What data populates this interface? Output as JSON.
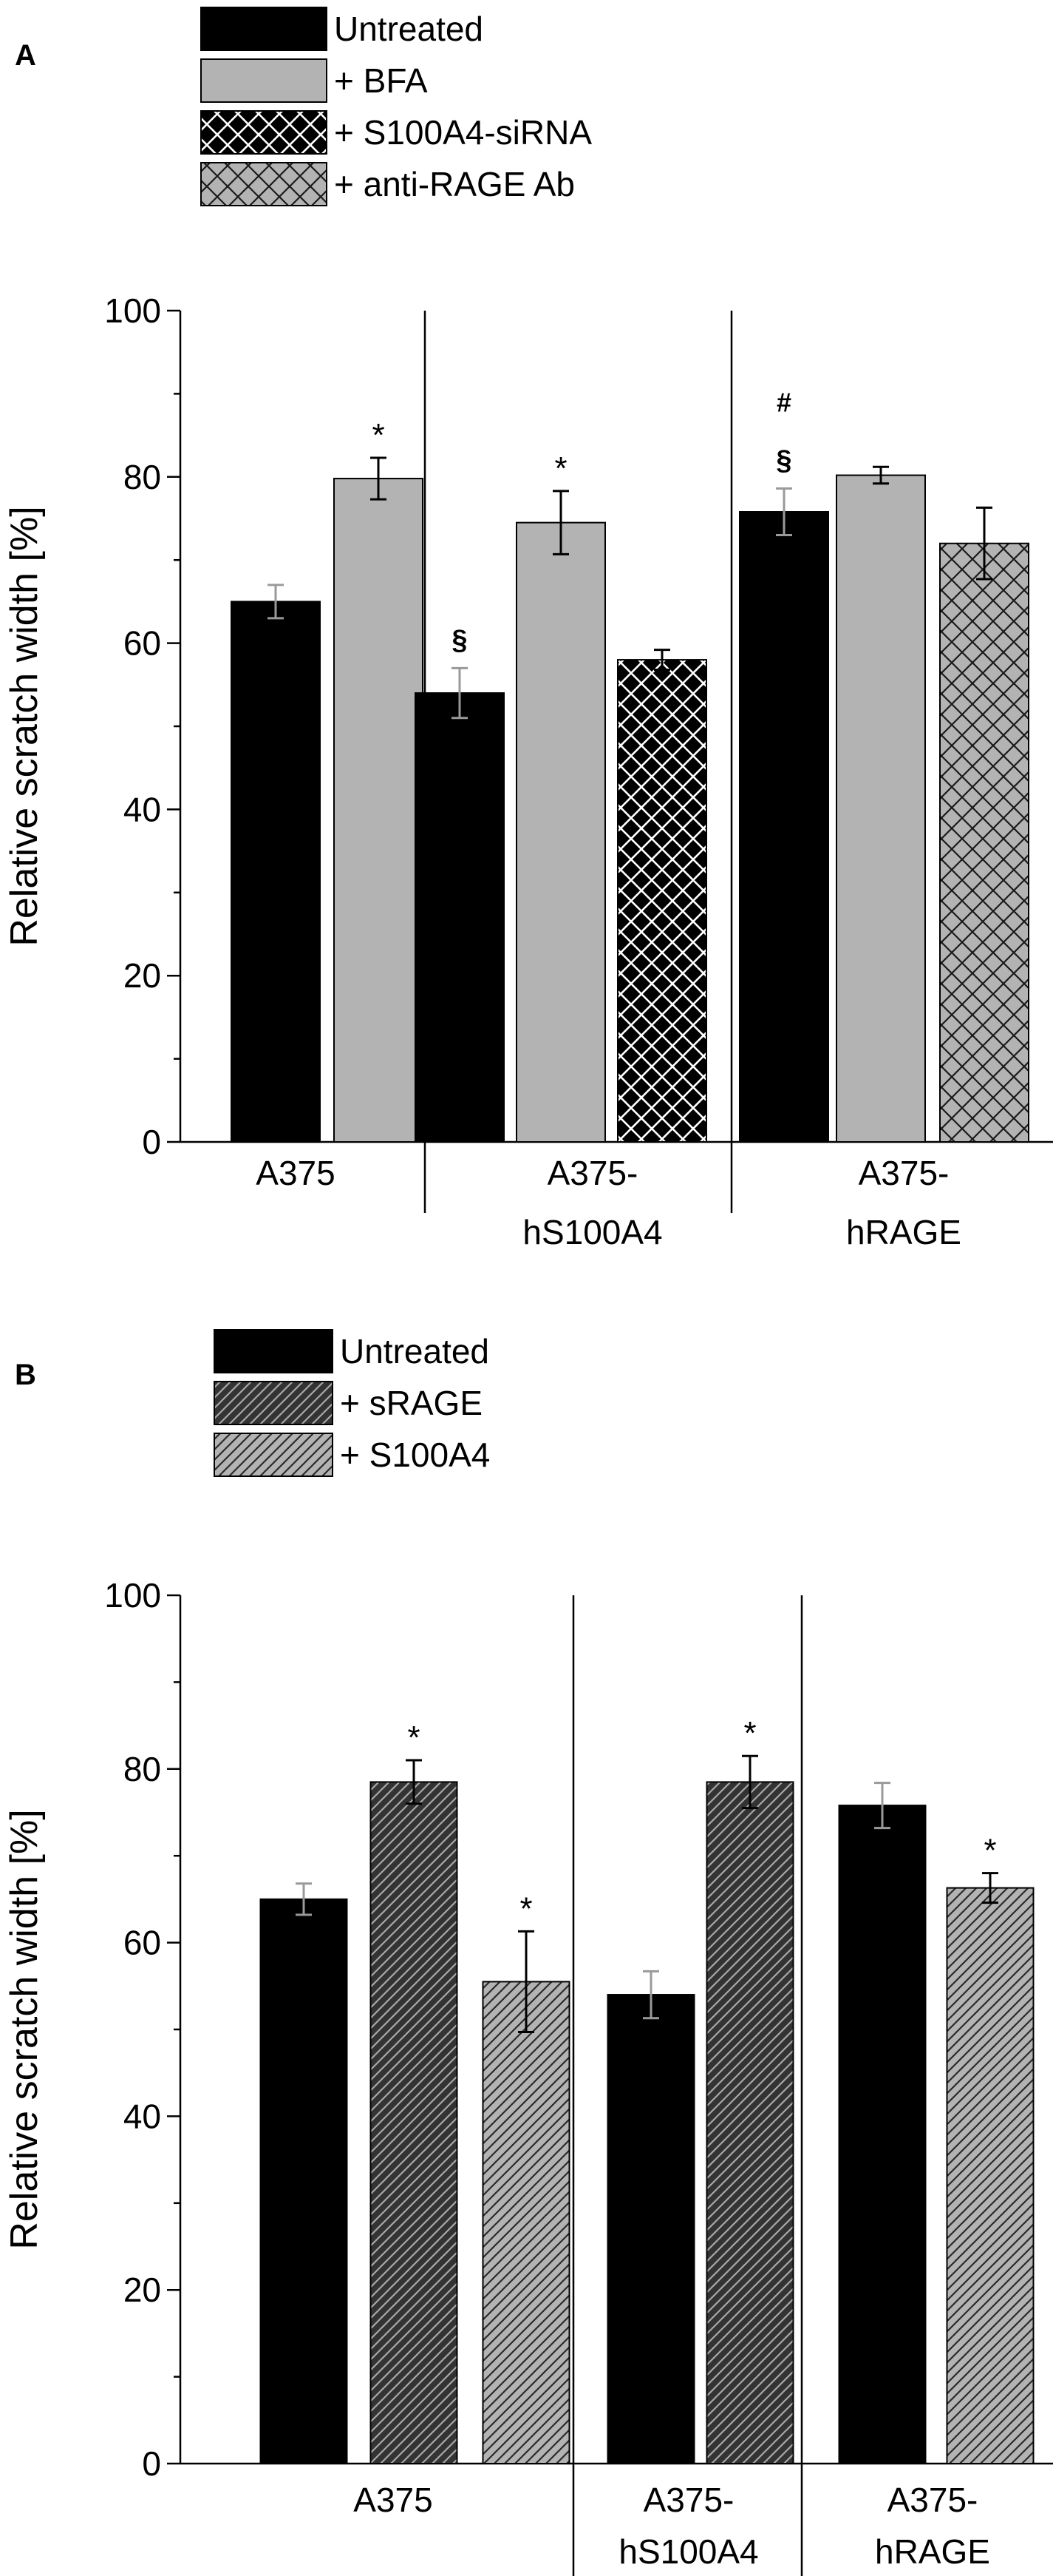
{
  "colors": {
    "untreated": "#000000",
    "bfa": "#b3b3b3",
    "s100a4_sirna": "#000000",
    "anti_rage": "#b3b3b3",
    "srage": "#333333",
    "s100a4": "#b3b3b3",
    "axis": "#000000",
    "errorbar_on_light": "#000000",
    "errorbar_on_dark": "#9a9a9a"
  },
  "chart_data": [
    {
      "panel_label": "A",
      "type": "bar",
      "ylabel": "Relative scratch width [%]",
      "ylim": [
        0,
        100
      ],
      "yticks": [
        "0",
        "20",
        "40",
        "60",
        "80",
        "100"
      ],
      "grid": false,
      "legend_placement": "top-left",
      "legend": [
        {
          "name": "Untreated",
          "fill": "untreated",
          "pattern": "solid"
        },
        {
          "name": "+ BFA",
          "fill": "bfa",
          "pattern": "solid"
        },
        {
          "name": "+ S100A4-siRNA",
          "fill": "s100a4_sirna",
          "pattern": "crosshatch-white"
        },
        {
          "name": "+ anti-RAGE Ab",
          "fill": "anti_rage",
          "pattern": "crosshatch-dark"
        }
      ],
      "groups": [
        {
          "label_lines": [
            "A375"
          ],
          "bars": [
            {
              "series": "Untreated",
              "value": 65,
              "error": 2,
              "annotation": ""
            },
            {
              "series": "+ BFA",
              "value": 79.8,
              "error": 2.5,
              "annotation": "*"
            }
          ]
        },
        {
          "label_lines": [
            "A375-",
            "hS100A4"
          ],
          "bars": [
            {
              "series": "Untreated",
              "value": 54,
              "error": 3,
              "annotation": "§"
            },
            {
              "series": "+ BFA",
              "value": 74.5,
              "error": 3.8,
              "annotation": "*"
            },
            {
              "series": "+ S100A4-siRNA",
              "value": 58,
              "error": 1.2,
              "annotation": ""
            }
          ]
        },
        {
          "label_lines": [
            "A375-",
            "hRAGE"
          ],
          "bars": [
            {
              "series": "Untreated",
              "value": 75.8,
              "error": 2.8,
              "annotation": "§",
              "annotation2": "#"
            },
            {
              "series": "+ BFA",
              "value": 80.2,
              "error": 1,
              "annotation": ""
            },
            {
              "series": "+ anti-RAGE Ab",
              "value": 72,
              "error": 4.3,
              "annotation": ""
            }
          ]
        }
      ]
    },
    {
      "panel_label": "B",
      "type": "bar",
      "ylabel": "Relative scratch width [%]",
      "ylim": [
        0,
        100
      ],
      "yticks": [
        "0",
        "20",
        "40",
        "60",
        "80",
        "100"
      ],
      "grid": false,
      "legend_placement": "top-left",
      "legend": [
        {
          "name": "Untreated",
          "fill": "untreated",
          "pattern": "solid"
        },
        {
          "name": "+ sRAGE",
          "fill": "srage",
          "pattern": "diagonal-light"
        },
        {
          "name": "+ S100A4",
          "fill": "s100a4",
          "pattern": "diagonal-dark"
        }
      ],
      "groups": [
        {
          "label_lines": [
            "A375"
          ],
          "bars": [
            {
              "series": "Untreated",
              "value": 65,
              "error": 1.8,
              "annotation": ""
            },
            {
              "series": "+ sRAGE",
              "value": 78.5,
              "error": 2.5,
              "annotation": "*"
            },
            {
              "series": "+ S100A4",
              "value": 55.5,
              "error": 5.8,
              "annotation": "*"
            }
          ]
        },
        {
          "label_lines": [
            "A375-",
            "hS100A4"
          ],
          "bars": [
            {
              "series": "Untreated",
              "value": 54,
              "error": 2.7,
              "annotation": ""
            },
            {
              "series": "+ sRAGE",
              "value": 78.5,
              "error": 3,
              "annotation": "*"
            }
          ]
        },
        {
          "label_lines": [
            "A375-",
            "hRAGE"
          ],
          "bars": [
            {
              "series": "Untreated",
              "value": 75.8,
              "error": 2.6,
              "annotation": ""
            },
            {
              "series": "+ S100A4",
              "value": 66.3,
              "error": 1.7,
              "annotation": "*"
            }
          ]
        }
      ]
    }
  ]
}
